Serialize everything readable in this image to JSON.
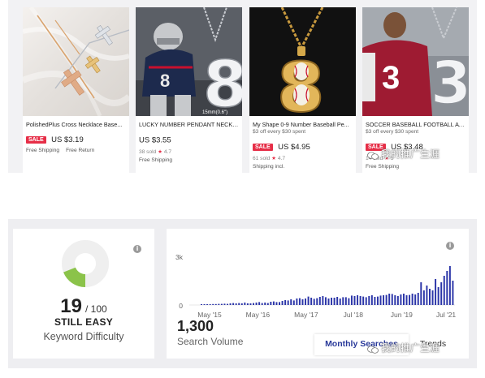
{
  "products": [
    {
      "title": "PolishedPlus Cross Necklace Base...",
      "offer": "",
      "sale_label": "SALE",
      "price": "US $3.19",
      "sold": "",
      "rating": "",
      "shipping": [
        "Free Shipping",
        "Free Return"
      ]
    },
    {
      "title": "LUCKY NUMBER PENDANT NECKL...",
      "offer": "",
      "sale_label": "",
      "price": "US $3.55",
      "sold": "38 sold",
      "rating": "4.7",
      "shipping": [
        "Free Shipping"
      ]
    },
    {
      "title": "My Shape 0-9 Number Baseball Pe...",
      "offer": "$3 off every $30 spent",
      "sale_label": "SALE",
      "price": "US $4.95",
      "sold": "61 sold",
      "rating": "4.7",
      "shipping": [
        "Shipping incl."
      ]
    },
    {
      "title": "SOCCER BASEBALL FOOTBALL ATH...",
      "offer": "$3 off every $30 spent",
      "sale_label": "SALE",
      "price": "US $3.48",
      "sold": "14 sold",
      "rating": "5",
      "shipping": [
        "Free Shipping"
      ]
    }
  ],
  "thumb_texts": {
    "size_tag": "15mm(0.6\")",
    "digit_8": "8",
    "digit_3": "3"
  },
  "difficulty": {
    "score": "19",
    "max": "/ 100",
    "level": "STILL EASY",
    "label": "Keyword Difficulty",
    "fraction": 0.19,
    "fill_color": "#8bc34a",
    "track_color": "#efefef",
    "info_icon": "info-icon"
  },
  "volume": {
    "value": "1,300",
    "label": "Search Volume",
    "tabs": {
      "monthly": "Monthly Searches",
      "trends": "Trends"
    },
    "bar_color": "#2b35a8"
  },
  "chart_data": {
    "type": "bar",
    "title": "",
    "xlabel": "",
    "ylabel": "",
    "yticks": [
      "3k",
      "0"
    ],
    "ylim": [
      0,
      3000
    ],
    "xtick_labels": [
      "May '15",
      "May '16",
      "May '17",
      "Jul '18",
      "Jun '19",
      "Jul '21"
    ],
    "series": [
      {
        "values": [
          50,
          50,
          50,
          50,
          60,
          60,
          70,
          70,
          80,
          70,
          100,
          120,
          100,
          120,
          100,
          150,
          100,
          100,
          120,
          150,
          180,
          120,
          150,
          120,
          200,
          220,
          180,
          180,
          250,
          300,
          280,
          350,
          280,
          400,
          420,
          350,
          400,
          520,
          450,
          380,
          420,
          500,
          550,
          480,
          400,
          450,
          450,
          500,
          400,
          480,
          480,
          420,
          580,
          550,
          600,
          550,
          520,
          480,
          550,
          600,
          500,
          520,
          580,
          600,
          620,
          700,
          680,
          600,
          550,
          650,
          700,
          600,
          620,
          700,
          650,
          750,
          1400,
          900,
          1200,
          1000,
          900,
          1600,
          1100,
          1400,
          1800,
          2100,
          2400,
          1500
        ]
      }
    ]
  },
  "watermark": "我的推广生涯"
}
